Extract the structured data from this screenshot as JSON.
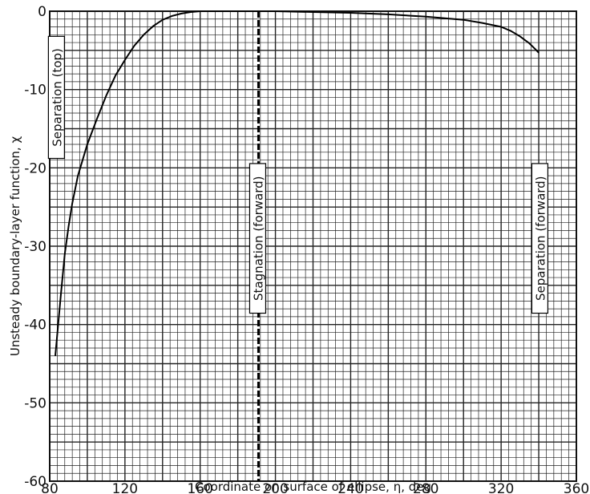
{
  "chart_data": {
    "type": "line",
    "xlabel": "Coordinate on surface of ellipse,  η, deg",
    "ylabel": "Unsteady boundary-layer function,  χ",
    "xlim": [
      80,
      360
    ],
    "ylim": [
      -60,
      0
    ],
    "grid": true,
    "x_ticks": [
      80,
      120,
      160,
      200,
      240,
      280,
      320,
      360
    ],
    "y_ticks": [
      0,
      -10,
      -20,
      -30,
      -40,
      -50,
      -60
    ],
    "x_tick_labels": [
      "80",
      "120",
      "160",
      "200",
      "240",
      "280",
      "320",
      "360"
    ],
    "y_tick_labels": [
      "0",
      "-10",
      "-20",
      "-30",
      "-40",
      "-50",
      "-60"
    ],
    "series": [
      {
        "x": [
          83,
          86,
          88,
          90,
          92,
          95,
          100,
          105,
          110,
          115,
          120,
          125,
          130,
          135,
          140,
          145,
          150,
          155,
          160,
          170,
          180,
          200,
          220,
          240,
          260,
          280,
          300,
          310,
          320,
          325,
          330,
          335,
          338,
          340
        ],
        "y": [
          -44,
          -36,
          -31,
          -27.5,
          -24.5,
          -21,
          -17,
          -13.8,
          -10.8,
          -8.2,
          -6.2,
          -4.4,
          -3.0,
          -1.9,
          -1.1,
          -0.6,
          -0.3,
          -0.1,
          0,
          0,
          0,
          0,
          -0.1,
          -0.2,
          -0.4,
          -0.7,
          -1.1,
          -1.5,
          -2.0,
          -2.5,
          -3.2,
          -4.1,
          -4.8,
          -5.3
        ]
      }
    ],
    "annotations": [
      {
        "text": "Separation  (top)",
        "x": 84,
        "y": -11
      },
      {
        "text": "Stagnation  (forward)",
        "x": 191,
        "y": -29
      },
      {
        "text": "Separation  (forward)",
        "x": 341,
        "y": -29
      }
    ],
    "vlines": [
      191
    ]
  }
}
